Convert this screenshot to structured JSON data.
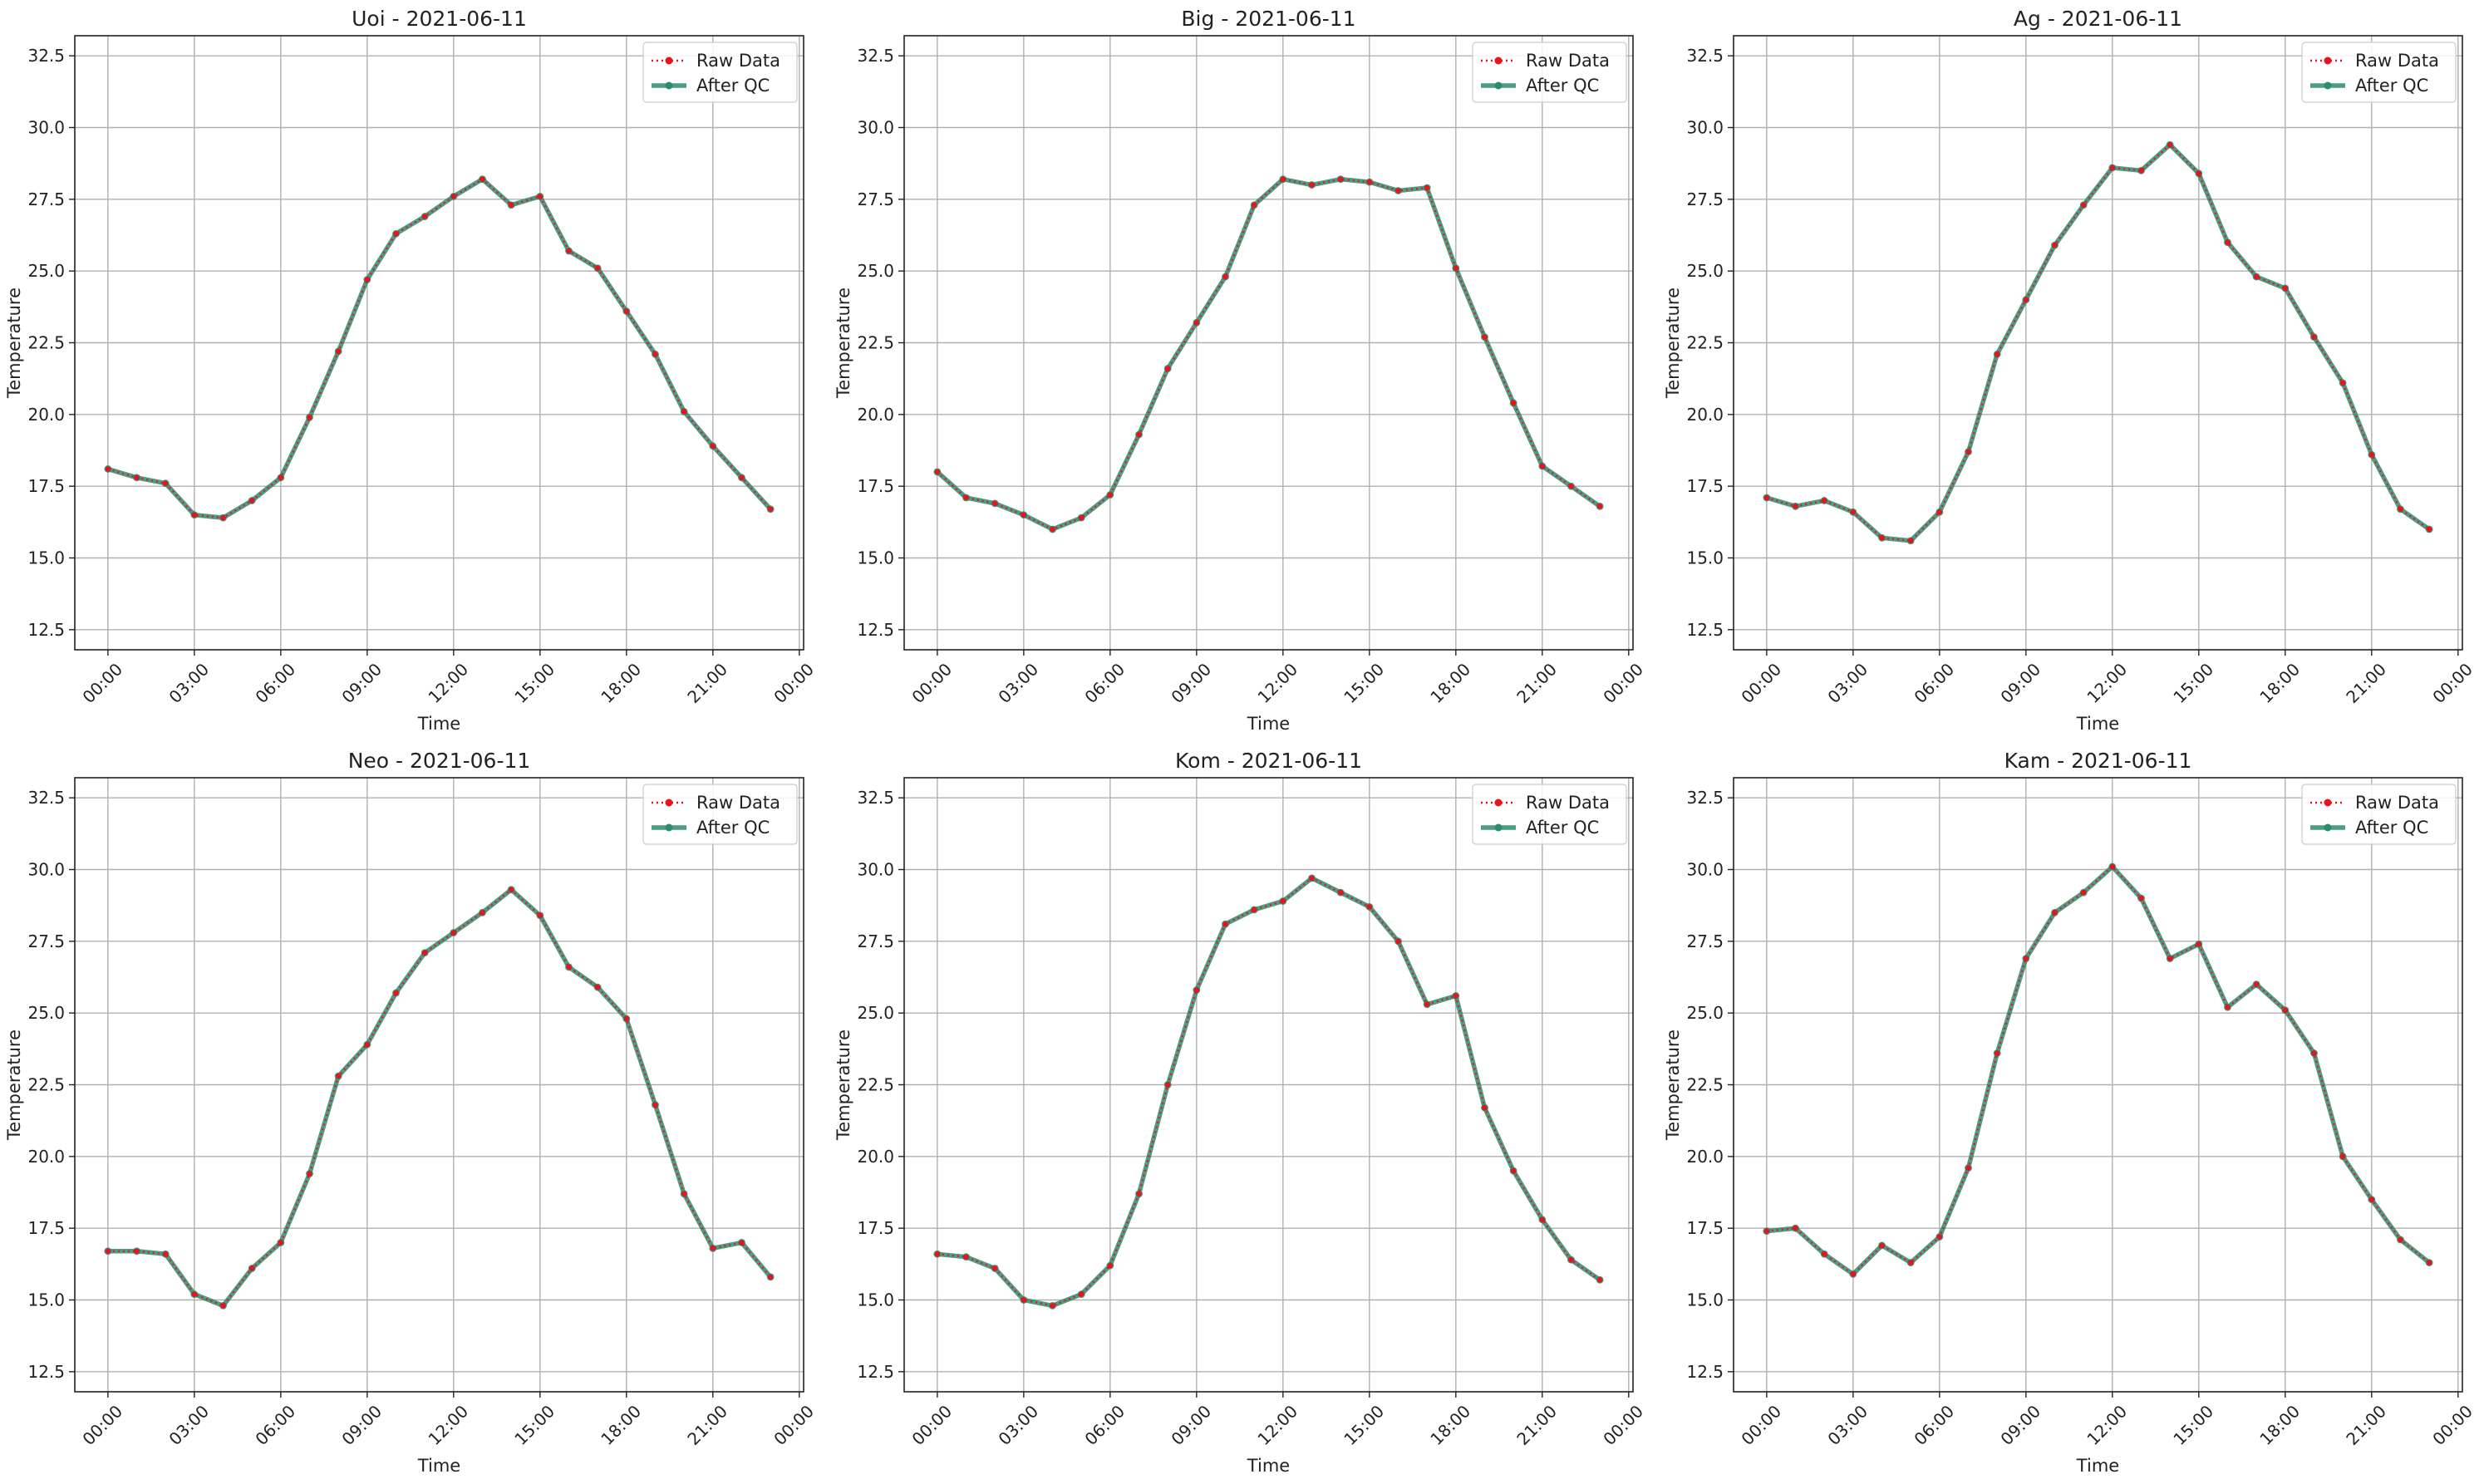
{
  "colors": {
    "raw": "#e8141d",
    "qc": "#2e8b6f",
    "grid": "#b0b0b0",
    "axis": "#222222"
  },
  "legend": {
    "raw_label": "Raw Data",
    "qc_label": "After QC",
    "placement": "top-right"
  },
  "chart_data": [
    {
      "type": "line",
      "title": "Uoi - 2021-06-11",
      "xlabel": "Time",
      "ylabel": "Temperature",
      "ylim": [
        11.8,
        33.2
      ],
      "yticks": [
        12.5,
        15.0,
        17.5,
        20.0,
        22.5,
        25.0,
        27.5,
        30.0,
        32.5
      ],
      "xticks": [
        "00:00",
        "03:00",
        "06:00",
        "09:00",
        "12:00",
        "15:00",
        "18:00",
        "21:00",
        "00:00"
      ],
      "grid": true,
      "x": [
        "00:00",
        "01:00",
        "02:00",
        "03:00",
        "04:00",
        "05:00",
        "06:00",
        "07:00",
        "08:00",
        "09:00",
        "10:00",
        "11:00",
        "12:00",
        "13:00",
        "14:00",
        "15:00",
        "16:00",
        "17:00",
        "18:00",
        "19:00",
        "20:00",
        "21:00",
        "22:00",
        "23:00"
      ],
      "series": [
        {
          "name": "Raw Data",
          "values": [
            18.1,
            17.8,
            17.6,
            16.5,
            16.4,
            17.0,
            17.8,
            19.9,
            22.2,
            24.7,
            26.3,
            26.9,
            27.6,
            28.2,
            27.3,
            27.6,
            25.7,
            25.1,
            23.6,
            22.1,
            20.1,
            18.9,
            17.8,
            16.7
          ]
        },
        {
          "name": "After QC",
          "values": [
            18.1,
            17.8,
            17.6,
            16.5,
            16.4,
            17.0,
            17.8,
            19.9,
            22.2,
            24.7,
            26.3,
            26.9,
            27.6,
            28.2,
            27.3,
            27.6,
            25.7,
            25.1,
            23.6,
            22.1,
            20.1,
            18.9,
            17.8,
            16.7
          ]
        }
      ]
    },
    {
      "type": "line",
      "title": "Big - 2021-06-11",
      "xlabel": "Time",
      "ylabel": "Temperature",
      "ylim": [
        11.8,
        33.2
      ],
      "yticks": [
        12.5,
        15.0,
        17.5,
        20.0,
        22.5,
        25.0,
        27.5,
        30.0,
        32.5
      ],
      "xticks": [
        "00:00",
        "03:00",
        "06:00",
        "09:00",
        "12:00",
        "15:00",
        "18:00",
        "21:00",
        "00:00"
      ],
      "grid": true,
      "x": [
        "00:00",
        "01:00",
        "02:00",
        "03:00",
        "04:00",
        "05:00",
        "06:00",
        "07:00",
        "08:00",
        "09:00",
        "10:00",
        "11:00",
        "12:00",
        "13:00",
        "14:00",
        "15:00",
        "16:00",
        "17:00",
        "18:00",
        "19:00",
        "20:00",
        "21:00",
        "22:00",
        "23:00"
      ],
      "series": [
        {
          "name": "Raw Data",
          "values": [
            18.0,
            17.1,
            16.9,
            16.5,
            16.0,
            16.4,
            17.2,
            19.3,
            21.6,
            23.2,
            24.8,
            27.3,
            28.2,
            28.0,
            28.2,
            28.1,
            27.8,
            27.9,
            25.1,
            22.7,
            20.4,
            18.2,
            17.5,
            16.8
          ]
        },
        {
          "name": "After QC",
          "values": [
            18.0,
            17.1,
            16.9,
            16.5,
            16.0,
            16.4,
            17.2,
            19.3,
            21.6,
            23.2,
            24.8,
            27.3,
            28.2,
            28.0,
            28.2,
            28.1,
            27.8,
            27.9,
            25.1,
            22.7,
            20.4,
            18.2,
            17.5,
            16.8
          ]
        }
      ]
    },
    {
      "type": "line",
      "title": "Ag - 2021-06-11",
      "xlabel": "Time",
      "ylabel": "Temperature",
      "ylim": [
        11.8,
        33.2
      ],
      "yticks": [
        12.5,
        15.0,
        17.5,
        20.0,
        22.5,
        25.0,
        27.5,
        30.0,
        32.5
      ],
      "xticks": [
        "00:00",
        "03:00",
        "06:00",
        "09:00",
        "12:00",
        "15:00",
        "18:00",
        "21:00",
        "00:00"
      ],
      "grid": true,
      "x": [
        "00:00",
        "01:00",
        "02:00",
        "03:00",
        "04:00",
        "05:00",
        "06:00",
        "07:00",
        "08:00",
        "09:00",
        "10:00",
        "11:00",
        "12:00",
        "13:00",
        "14:00",
        "15:00",
        "16:00",
        "17:00",
        "18:00",
        "19:00",
        "20:00",
        "21:00",
        "22:00",
        "23:00"
      ],
      "series": [
        {
          "name": "Raw Data",
          "values": [
            17.1,
            16.8,
            17.0,
            16.6,
            15.7,
            15.6,
            16.6,
            18.7,
            22.1,
            24.0,
            25.9,
            27.3,
            28.6,
            28.5,
            29.4,
            28.4,
            26.0,
            24.8,
            24.4,
            22.7,
            21.1,
            18.6,
            16.7,
            16.0
          ]
        },
        {
          "name": "After QC",
          "values": [
            17.1,
            16.8,
            17.0,
            16.6,
            15.7,
            15.6,
            16.6,
            18.7,
            22.1,
            24.0,
            25.9,
            27.3,
            28.6,
            28.5,
            29.4,
            28.4,
            26.0,
            24.8,
            24.4,
            22.7,
            21.1,
            18.6,
            16.7,
            16.0
          ]
        }
      ]
    },
    {
      "type": "line",
      "title": "Neo - 2021-06-11",
      "xlabel": "Time",
      "ylabel": "Temperature",
      "ylim": [
        11.8,
        33.2
      ],
      "yticks": [
        12.5,
        15.0,
        17.5,
        20.0,
        22.5,
        25.0,
        27.5,
        30.0,
        32.5
      ],
      "xticks": [
        "00:00",
        "03:00",
        "06:00",
        "09:00",
        "12:00",
        "15:00",
        "18:00",
        "21:00",
        "00:00"
      ],
      "grid": true,
      "x": [
        "00:00",
        "01:00",
        "02:00",
        "03:00",
        "04:00",
        "05:00",
        "06:00",
        "07:00",
        "08:00",
        "09:00",
        "10:00",
        "11:00",
        "12:00",
        "13:00",
        "14:00",
        "15:00",
        "16:00",
        "17:00",
        "18:00",
        "19:00",
        "20:00",
        "21:00",
        "22:00",
        "23:00"
      ],
      "series": [
        {
          "name": "Raw Data",
          "values": [
            16.7,
            16.7,
            16.6,
            15.2,
            14.8,
            16.1,
            17.0,
            19.4,
            22.8,
            23.9,
            25.7,
            27.1,
            27.8,
            28.5,
            29.3,
            28.4,
            26.6,
            25.9,
            24.8,
            21.8,
            18.7,
            16.8,
            17.0,
            15.8
          ]
        },
        {
          "name": "After QC",
          "values": [
            16.7,
            16.7,
            16.6,
            15.2,
            14.8,
            16.1,
            17.0,
            19.4,
            22.8,
            23.9,
            25.7,
            27.1,
            27.8,
            28.5,
            29.3,
            28.4,
            26.6,
            25.9,
            24.8,
            21.8,
            18.7,
            16.8,
            17.0,
            15.8
          ]
        }
      ]
    },
    {
      "type": "line",
      "title": "Kom - 2021-06-11",
      "xlabel": "Time",
      "ylabel": "Temperature",
      "ylim": [
        11.8,
        33.2
      ],
      "yticks": [
        12.5,
        15.0,
        17.5,
        20.0,
        22.5,
        25.0,
        27.5,
        30.0,
        32.5
      ],
      "xticks": [
        "00:00",
        "03:00",
        "06:00",
        "09:00",
        "12:00",
        "15:00",
        "18:00",
        "21:00",
        "00:00"
      ],
      "grid": true,
      "x": [
        "00:00",
        "01:00",
        "02:00",
        "03:00",
        "04:00",
        "05:00",
        "06:00",
        "07:00",
        "08:00",
        "09:00",
        "10:00",
        "11:00",
        "12:00",
        "13:00",
        "14:00",
        "15:00",
        "16:00",
        "17:00",
        "18:00",
        "19:00",
        "20:00",
        "21:00",
        "22:00",
        "23:00"
      ],
      "series": [
        {
          "name": "Raw Data",
          "values": [
            16.6,
            16.5,
            16.1,
            15.0,
            14.8,
            15.2,
            16.2,
            18.7,
            22.5,
            25.8,
            28.1,
            28.6,
            28.9,
            29.7,
            29.2,
            28.7,
            27.5,
            25.3,
            25.6,
            21.7,
            19.5,
            17.8,
            16.4,
            15.7
          ]
        },
        {
          "name": "After QC",
          "values": [
            16.6,
            16.5,
            16.1,
            15.0,
            14.8,
            15.2,
            16.2,
            18.7,
            22.5,
            25.8,
            28.1,
            28.6,
            28.9,
            29.7,
            29.2,
            28.7,
            27.5,
            25.3,
            25.6,
            21.7,
            19.5,
            17.8,
            16.4,
            15.7
          ]
        }
      ]
    },
    {
      "type": "line",
      "title": "Kam - 2021-06-11",
      "xlabel": "Time",
      "ylabel": "Temperature",
      "ylim": [
        11.8,
        33.2
      ],
      "yticks": [
        12.5,
        15.0,
        17.5,
        20.0,
        22.5,
        25.0,
        27.5,
        30.0,
        32.5
      ],
      "xticks": [
        "00:00",
        "03:00",
        "06:00",
        "09:00",
        "12:00",
        "15:00",
        "18:00",
        "21:00",
        "00:00"
      ],
      "grid": true,
      "x": [
        "00:00",
        "01:00",
        "02:00",
        "03:00",
        "04:00",
        "05:00",
        "06:00",
        "07:00",
        "08:00",
        "09:00",
        "10:00",
        "11:00",
        "12:00",
        "13:00",
        "14:00",
        "15:00",
        "16:00",
        "17:00",
        "18:00",
        "19:00",
        "20:00",
        "21:00",
        "22:00",
        "23:00"
      ],
      "series": [
        {
          "name": "Raw Data",
          "values": [
            17.4,
            17.5,
            16.6,
            15.9,
            16.9,
            16.3,
            17.2,
            19.6,
            23.6,
            26.9,
            28.5,
            29.2,
            30.1,
            29.0,
            26.9,
            27.4,
            25.2,
            26.0,
            25.1,
            23.6,
            20.0,
            18.5,
            17.1,
            16.3
          ]
        },
        {
          "name": "After QC",
          "values": [
            17.4,
            17.5,
            16.6,
            15.9,
            16.9,
            16.3,
            17.2,
            19.6,
            23.6,
            26.9,
            28.5,
            29.2,
            30.1,
            29.0,
            26.9,
            27.4,
            25.2,
            26.0,
            25.1,
            23.6,
            20.0,
            18.5,
            17.1,
            16.3
          ]
        }
      ]
    }
  ]
}
